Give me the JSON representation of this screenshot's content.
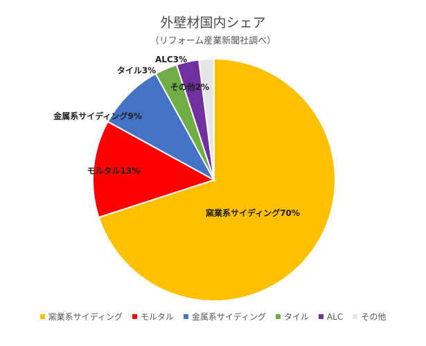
{
  "chart_data": {
    "type": "pie",
    "title": "外壁材国内シェア",
    "subtitle": "（リフォーム産業新聞社調べ）",
    "legend_position": "bottom",
    "slices": [
      {
        "name": "窯業系サイディング",
        "value": 70,
        "label": "窯業系サイディング70%",
        "color": "#FFC000"
      },
      {
        "name": "モルタル",
        "value": 13,
        "label": "モルタル13%",
        "color": "#FF0000"
      },
      {
        "name": "金属系サイディング",
        "value": 9,
        "label": "金属系サイディング9%",
        "color": "#4472C4"
      },
      {
        "name": "タイル",
        "value": 3,
        "label": "タイル3%",
        "color": "#70AD47"
      },
      {
        "name": "ALC",
        "value": 3,
        "label": "ALC3%",
        "color": "#7030A0"
      },
      {
        "name": "その他",
        "value": 2,
        "label": "その他2%",
        "color": "#E7E6E6"
      }
    ]
  }
}
